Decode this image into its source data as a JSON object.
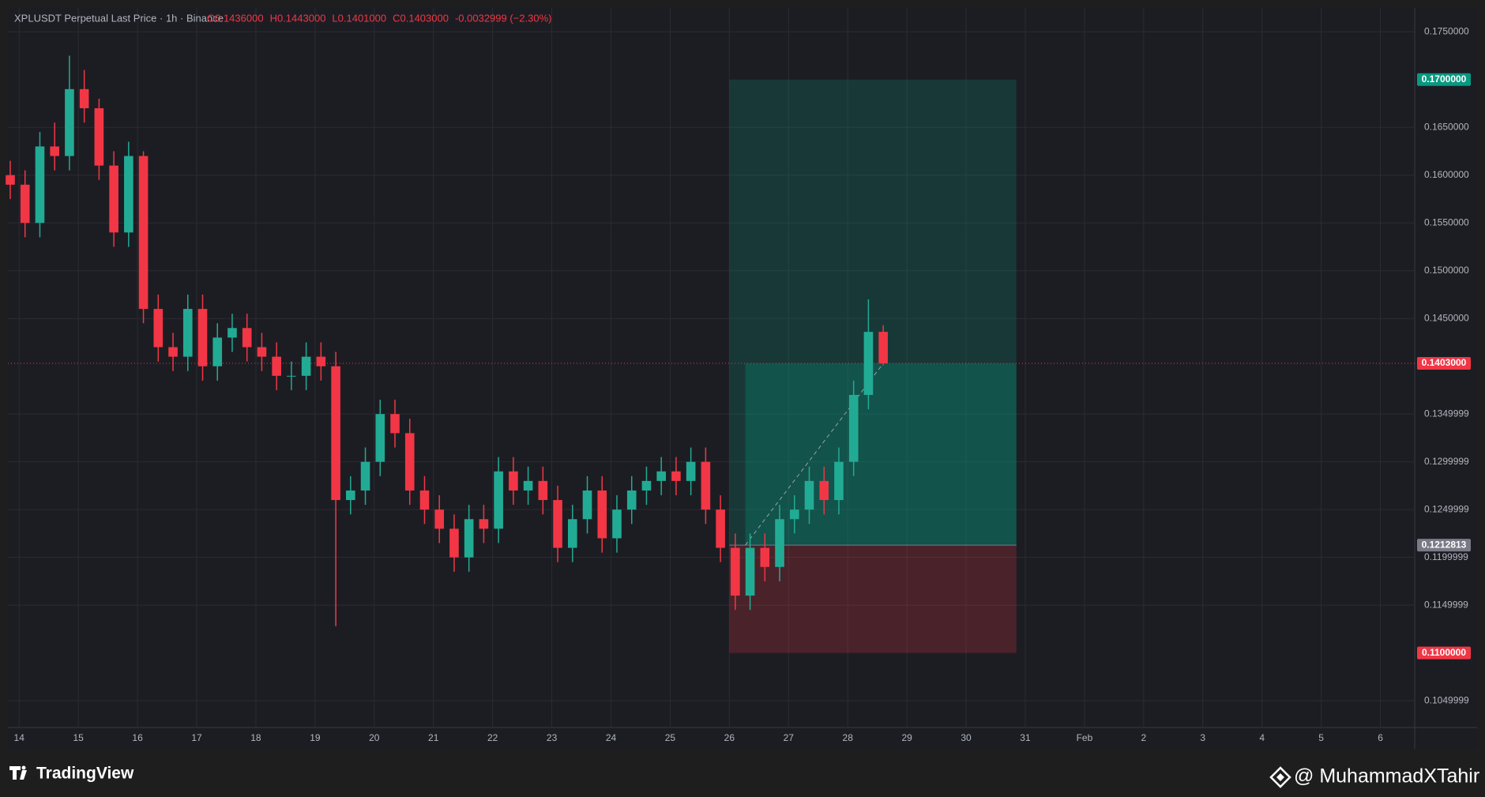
{
  "chart_data": {
    "type": "candlestick",
    "title": "XPLUSDT Perpetual Last Price · 1h · Binance",
    "ohlc_text": [
      "O0.1436000",
      "H0.1443000",
      "L0.1401000",
      "C0.1403000",
      "-0.0032999 (−2.30%)"
    ],
    "up_color": "#22ab94",
    "down_color": "#f23645",
    "grid": true,
    "xlim": [
      13.81,
      37.58
    ],
    "xticks": [
      14,
      15,
      16,
      17,
      18,
      19,
      20,
      21,
      22,
      23,
      24,
      25,
      26,
      27,
      28,
      29,
      30,
      31,
      {
        "value": 32,
        "label": "Feb"
      },
      {
        "value": 33,
        "label": "2"
      },
      {
        "value": 34,
        "label": "3"
      },
      {
        "value": 35,
        "label": "4"
      },
      {
        "value": 36,
        "label": "5"
      },
      {
        "value": 37,
        "label": "6"
      }
    ],
    "ylim": [
      0.1022,
      0.1775
    ],
    "yticks": [
      {
        "value": 0.175,
        "label": "0.1750000"
      },
      {
        "value": 0.165,
        "label": "0.1650000"
      },
      {
        "value": 0.16,
        "label": "0.1600000"
      },
      {
        "value": 0.155,
        "label": "0.1550000"
      },
      {
        "value": 0.15,
        "label": "0.1500000"
      },
      {
        "value": 0.145,
        "label": "0.1450000"
      },
      {
        "value": 0.135,
        "label": "0.1349999"
      },
      {
        "value": 0.13,
        "label": "0.1299999"
      },
      {
        "value": 0.125,
        "label": "0.1249999"
      },
      {
        "value": 0.12,
        "label": "0.1199999"
      },
      {
        "value": 0.115,
        "label": "0.1149999"
      },
      {
        "value": 0.105,
        "label": "0.1049999"
      }
    ],
    "x": [
      13.85,
      14.1,
      14.35,
      14.6,
      14.85,
      15.1,
      15.35,
      15.6,
      15.85,
      16.1,
      16.35,
      16.6,
      16.85,
      17.1,
      17.35,
      17.6,
      17.85,
      18.1,
      18.35,
      18.6,
      18.85,
      19.1,
      19.35,
      19.6,
      19.85,
      20.1,
      20.35,
      20.6,
      20.85,
      21.1,
      21.35,
      21.6,
      21.85,
      22.1,
      22.35,
      22.6,
      22.85,
      23.1,
      23.35,
      23.6,
      23.85,
      24.1,
      24.35,
      24.6,
      24.85,
      25.1,
      25.35,
      25.6,
      25.85,
      26.1,
      26.35,
      26.6,
      26.85,
      27.1,
      27.35,
      27.6,
      27.85,
      28.1,
      28.35,
      28.6
    ],
    "open": [
      0.16,
      0.159,
      0.155,
      0.163,
      0.162,
      0.169,
      0.167,
      0.161,
      0.154,
      0.162,
      0.146,
      0.142,
      0.141,
      0.146,
      0.14,
      0.143,
      0.144,
      0.142,
      0.141,
      0.139,
      0.139,
      0.141,
      0.14,
      0.126,
      0.127,
      0.13,
      0.135,
      0.133,
      0.127,
      0.125,
      0.123,
      0.12,
      0.124,
      0.123,
      0.129,
      0.127,
      0.128,
      0.126,
      0.121,
      0.124,
      0.127,
      0.122,
      0.125,
      0.127,
      0.128,
      0.129,
      0.128,
      0.13,
      0.125,
      0.121,
      0.116,
      0.121,
      0.119,
      0.124,
      0.125,
      0.128,
      0.126,
      0.13,
      0.137,
      0.1436
    ],
    "high": [
      0.1615,
      0.1605,
      0.1645,
      0.1655,
      0.1725,
      0.171,
      0.168,
      0.1625,
      0.1635,
      0.1625,
      0.1475,
      0.1435,
      0.1475,
      0.1475,
      0.1445,
      0.1455,
      0.1455,
      0.1435,
      0.1425,
      0.1405,
      0.1425,
      0.1425,
      0.1415,
      0.1285,
      0.1315,
      0.1365,
      0.1365,
      0.1345,
      0.1285,
      0.1265,
      0.1245,
      0.1255,
      0.1255,
      0.1305,
      0.1305,
      0.1295,
      0.1295,
      0.1275,
      0.1255,
      0.1285,
      0.1285,
      0.1265,
      0.1285,
      0.1295,
      0.1305,
      0.1305,
      0.1315,
      0.1315,
      0.1265,
      0.1225,
      0.1225,
      0.1225,
      0.1255,
      0.1265,
      0.1295,
      0.1295,
      0.1315,
      0.1385,
      0.147,
      0.1443
    ],
    "low": [
      0.1575,
      0.1535,
      0.1535,
      0.1605,
      0.1605,
      0.1655,
      0.1595,
      0.1525,
      0.1525,
      0.1445,
      0.1405,
      0.1395,
      0.1395,
      0.1385,
      0.1385,
      0.1415,
      0.1405,
      0.1395,
      0.1375,
      0.1375,
      0.1375,
      0.1385,
      0.1128,
      0.1245,
      0.1255,
      0.1285,
      0.1315,
      0.1255,
      0.1235,
      0.1215,
      0.1185,
      0.1185,
      0.1215,
      0.1215,
      0.1255,
      0.1255,
      0.1245,
      0.1195,
      0.1195,
      0.1225,
      0.1205,
      0.1205,
      0.1235,
      0.1255,
      0.1265,
      0.1265,
      0.1265,
      0.1235,
      0.1195,
      0.1145,
      0.1145,
      0.1175,
      0.1175,
      0.1225,
      0.1235,
      0.1245,
      0.1245,
      0.1285,
      0.1355,
      0.1401
    ],
    "close": [
      0.159,
      0.155,
      0.163,
      0.162,
      0.169,
      0.167,
      0.161,
      0.154,
      0.162,
      0.146,
      0.142,
      0.141,
      0.146,
      0.14,
      0.143,
      0.144,
      0.142,
      0.141,
      0.139,
      0.139,
      0.141,
      0.14,
      0.126,
      0.127,
      0.13,
      0.135,
      0.133,
      0.127,
      0.125,
      0.123,
      0.12,
      0.124,
      0.123,
      0.129,
      0.127,
      0.128,
      0.126,
      0.121,
      0.124,
      0.127,
      0.122,
      0.125,
      0.127,
      0.128,
      0.129,
      0.128,
      0.13,
      0.125,
      0.121,
      0.116,
      0.121,
      0.119,
      0.124,
      0.125,
      0.128,
      0.126,
      0.13,
      0.137,
      0.1436,
      0.1403
    ],
    "position": {
      "x_start": 26.0,
      "x_end": 30.85,
      "entry_time": 26.27,
      "entry": 0.1212813,
      "target": {
        "value": 0.17,
        "label": "0.1700000"
      },
      "stop": {
        "value": 0.11,
        "label": "0.1100000"
      },
      "current": {
        "value": 0.1403,
        "label": "0.1403000"
      }
    }
  },
  "footer": {
    "brand": "TradingView",
    "watermark": "@ MuhammadXTahir"
  }
}
